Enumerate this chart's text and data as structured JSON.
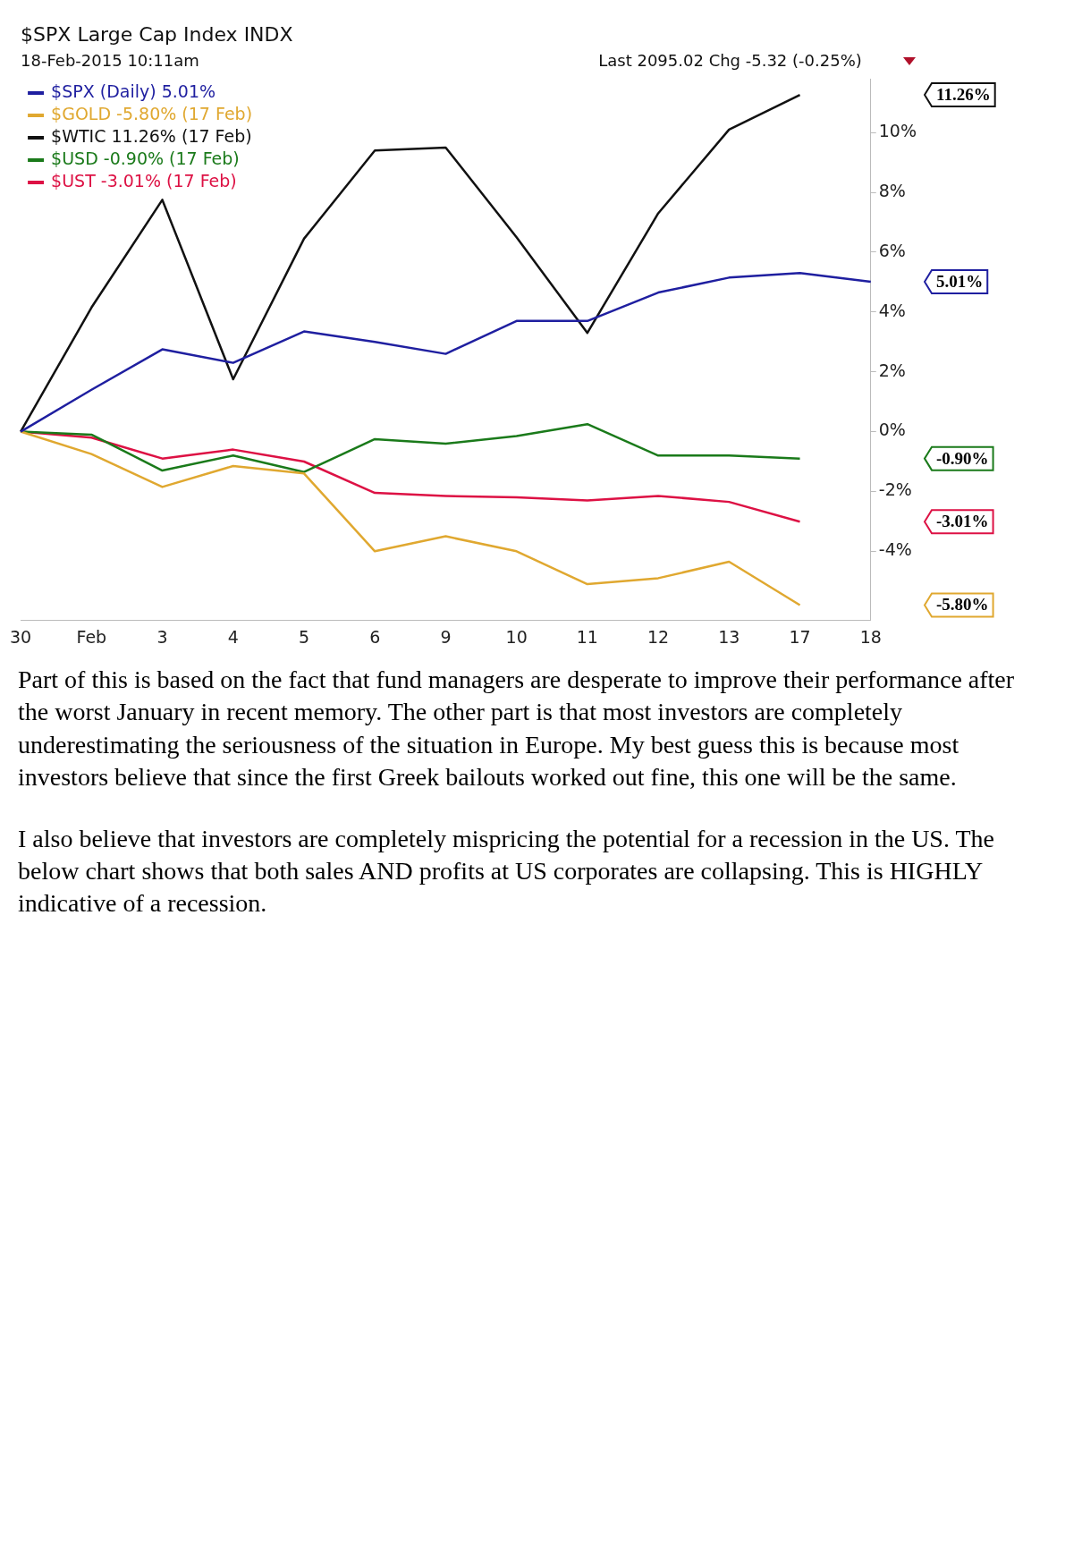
{
  "chart_data": {
    "type": "line",
    "title": "$SPX Large Cap Index INDX",
    "subtitle": "18-Feb-2015 10:11am",
    "categories": [
      "30",
      "Feb",
      "3",
      "4",
      "5",
      "6",
      "9",
      "10",
      "11",
      "12",
      "13",
      "17",
      "18"
    ],
    "series": [
      {
        "name": "$SPX (Daily) 5.01%",
        "color": "#1f1fa0",
        "values": [
          0,
          1.4,
          2.75,
          2.3,
          3.35,
          3.0,
          2.6,
          3.7,
          3.7,
          4.65,
          5.15,
          5.3,
          5.01
        ]
      },
      {
        "name": "$GOLD -5.80% (17 Feb)",
        "color": "#e0a830",
        "values": [
          0,
          -0.75,
          -1.85,
          -1.15,
          -1.4,
          -4.0,
          -3.5,
          -4.0,
          -5.1,
          -4.9,
          -4.35,
          -5.8,
          null
        ]
      },
      {
        "name": "$WTIC 11.26% (17 Feb)",
        "color": "#111111",
        "values": [
          0,
          4.15,
          7.75,
          1.75,
          6.45,
          9.4,
          9.5,
          6.5,
          3.3,
          7.3,
          10.1,
          11.26,
          null
        ]
      },
      {
        "name": "$USD -0.90% (17 Feb)",
        "color": "#1a7a1a",
        "values": [
          0,
          -0.1,
          -1.3,
          -0.8,
          -1.35,
          -0.25,
          -0.4,
          -0.15,
          0.25,
          -0.8,
          -0.8,
          -0.9,
          null
        ]
      },
      {
        "name": "$UST -3.01% (17 Feb)",
        "color": "#dd1144",
        "values": [
          0,
          -0.2,
          -0.9,
          -0.6,
          -1.0,
          -2.05,
          -2.15,
          -2.2,
          -2.3,
          -2.15,
          -2.35,
          -3.01,
          null
        ]
      }
    ],
    "ylim": [
      -6.3,
      11.8
    ],
    "yticks": [
      {
        "value": -4,
        "label": "-4%"
      },
      {
        "value": -2,
        "label": "-2%"
      },
      {
        "value": 0,
        "label": "0%"
      },
      {
        "value": 2,
        "label": "2%"
      },
      {
        "value": 4,
        "label": "4%"
      },
      {
        "value": 6,
        "label": "6%"
      },
      {
        "value": 8,
        "label": "8%"
      },
      {
        "value": 10,
        "label": "10%"
      }
    ],
    "grid": false,
    "legend": "top left",
    "marker": "none",
    "line_style": "solid",
    "annotations": [
      "Last 2095.02 Chg -5.32 (-0.25%)",
      "11.26%",
      "5.01%",
      "-0.90%",
      "-3.01%",
      "-5.80%",
      "Part of this is based on the fact that fund managers are desperate to improve their performance after the worst January in recent memory. The other part is that most investors are completely underestimating the seriousness of the situation in Europe. My best guess this is because most investors believe that since the first Greek bailouts worked out fine, this one will be the same.",
      "I also believe that investors are completely mispricing the potential for a recession in the US. The below chart shows that both sales AND profits at US corporates are collapsing. This is HIGHLY indicative of a recession."
    ]
  }
}
